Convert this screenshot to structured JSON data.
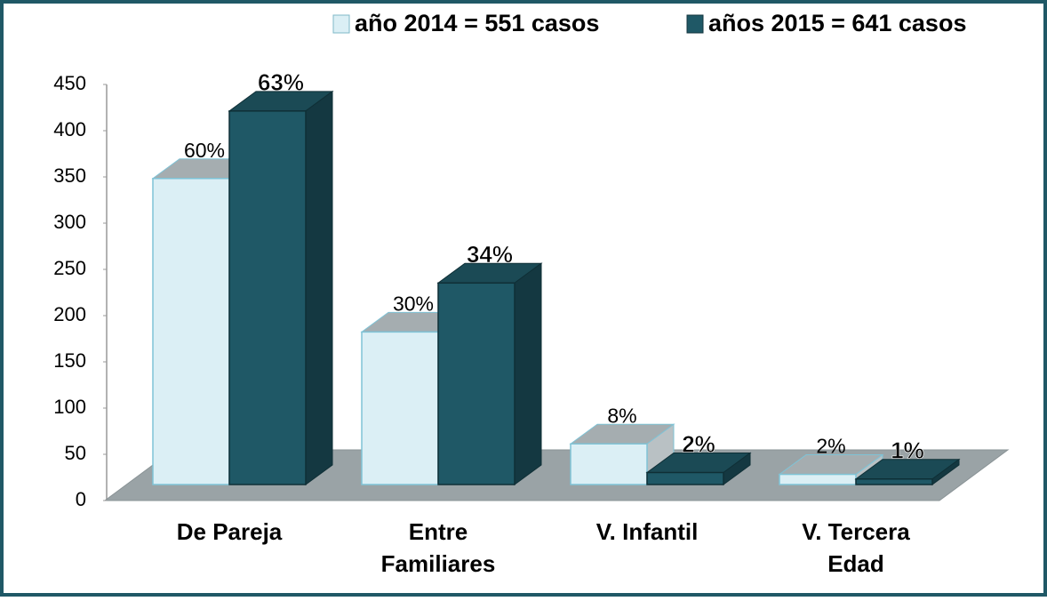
{
  "chart_data": {
    "type": "bar3d",
    "categories": [
      "De Pareja",
      "Entre\nFamiliares",
      "V. Infantil",
      "V. Tercera\nEdad"
    ],
    "series": [
      {
        "name": "año 2014 = 551 casos",
        "color": "#dbeff5",
        "values": [
          331,
          165,
          44,
          11
        ],
        "percent_labels": [
          "60%",
          "30%",
          "8%",
          "2%"
        ]
      },
      {
        "name": "años 2015 = 641 casos",
        "color": "#1f5866",
        "values": [
          404,
          218,
          13,
          6
        ],
        "percent_labels": [
          "63%",
          "34%",
          "2%",
          "1%"
        ]
      }
    ],
    "ylim": [
      0,
      450
    ],
    "yticks": [
      0,
      50,
      100,
      150,
      200,
      250,
      300,
      350,
      400,
      450
    ],
    "legend": "top-right"
  }
}
